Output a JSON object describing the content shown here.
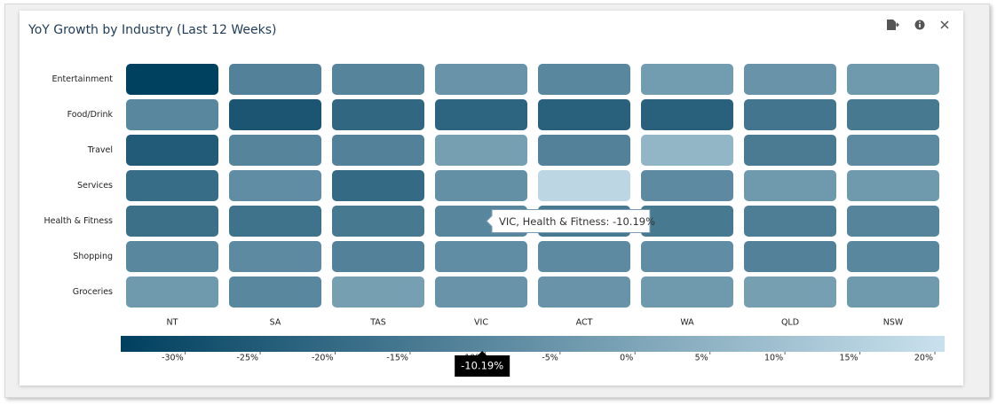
{
  "chart_data": {
    "type": "heatmap",
    "title": "YoY Growth by Industry (Last 12 Weeks)",
    "x_categories": [
      "NT",
      "SA",
      "TAS",
      "VIC",
      "ACT",
      "WA",
      "QLD",
      "NSW"
    ],
    "y_categories": [
      "Entertainment",
      "Food/Drink",
      "Travel",
      "Services",
      "Health & Fitness",
      "Shopping",
      "Groceries"
    ],
    "values": [
      [
        -34,
        -12,
        -11,
        -6,
        -10,
        -3,
        -6,
        -4
      ],
      [
        -10,
        -27,
        -21,
        -22,
        -23,
        -23,
        -16,
        -15
      ],
      [
        -25,
        -11,
        -12,
        -2,
        -12,
        6,
        -14,
        -9
      ],
      [
        -19,
        -8,
        -20,
        -7,
        17,
        -9,
        -4,
        -4
      ],
      [
        -18,
        -17,
        -15,
        -10.19,
        -15,
        -15,
        -13,
        -11
      ],
      [
        -10,
        -9,
        -12,
        -8,
        -9,
        -8,
        -12,
        -10
      ],
      [
        -4,
        -10,
        -2,
        -6,
        -6,
        -4,
        -2,
        -4
      ]
    ],
    "zlim": [
      -34.3,
      20.65
    ],
    "zticks": [
      {
        "value": -30,
        "label": "-30%"
      },
      {
        "value": -25,
        "label": "-25%"
      },
      {
        "value": -20,
        "label": "-20%"
      },
      {
        "value": -15,
        "label": "-15%"
      },
      {
        "value": -10,
        "label": "-10%"
      },
      {
        "value": -5,
        "label": "-5%"
      },
      {
        "value": 0,
        "label": "0%"
      },
      {
        "value": 5,
        "label": "5%"
      },
      {
        "value": 10,
        "label": "10%"
      },
      {
        "value": 15,
        "label": "15%"
      },
      {
        "value": 20,
        "label": "20%"
      }
    ],
    "color_low": "#00405f",
    "color_high": "#c9e1ed",
    "tooltip": {
      "text": "VIC, Health & Fitness: -10.19%",
      "scale_label": "-10.19%",
      "row": 4,
      "col": 3
    }
  }
}
